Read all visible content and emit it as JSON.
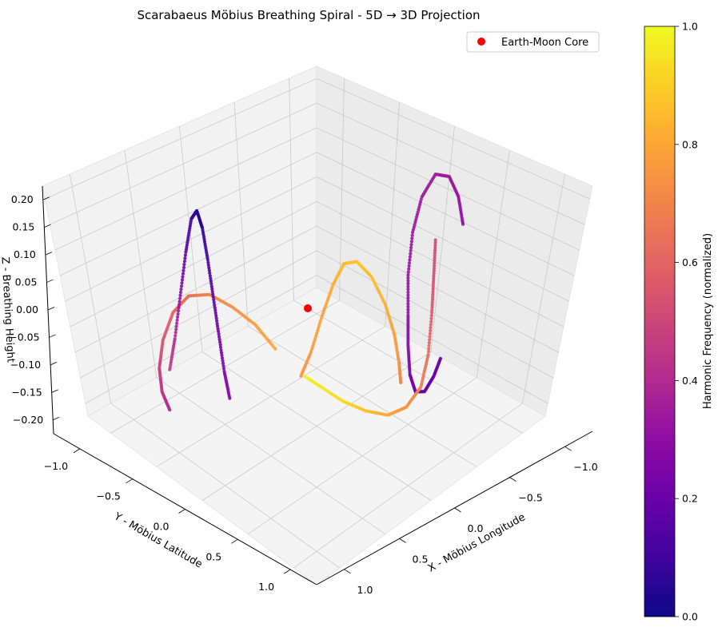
{
  "chart_data": {
    "type": "scatter",
    "title": "Scarabaeus Möbius Breathing Spiral - 5D → 3D Projection",
    "xlabel": "X - Möbius Longitude",
    "ylabel": "Y - Möbius Latitude",
    "zlabel": "Z - Breathing Height",
    "x_ticks": [
      "−1.0",
      "−0.5",
      "0.0",
      "0.5",
      "1.0"
    ],
    "y_ticks": [
      "−1.0",
      "−0.5",
      "0.0",
      "0.5",
      "1.0"
    ],
    "z_ticks": [
      "0.20",
      "0.15",
      "0.10",
      "0.05",
      "0.00",
      "−0.05",
      "−0.10",
      "−0.15",
      "−0.20"
    ],
    "xlim": [
      -1.25,
      1.25
    ],
    "ylim": [
      -1.25,
      1.25
    ],
    "zlim": [
      -0.22,
      0.22
    ],
    "grid": true,
    "colormap": "plasma",
    "colorbar": {
      "label": "Harmonic Frequency (normalized)",
      "ticks": [
        "0.0",
        "0.2",
        "0.4",
        "0.6",
        "0.8",
        "1.0"
      ],
      "range": [
        0,
        1
      ]
    },
    "legend": {
      "position": "top-right",
      "entries": [
        {
          "label": "Earth-Moon Core",
          "color": "#ff0000"
        }
      ]
    },
    "core_point": {
      "x": 0,
      "y": 0,
      "z": 0,
      "color": "#ff0000"
    },
    "series": [
      {
        "values": [
          [
            -0.4,
            -1.2,
            0.08,
            0.3
          ],
          [
            -0.4,
            -1.15,
            0.14,
            0.32
          ],
          [
            -0.4,
            -1.05,
            0.19,
            0.34
          ],
          [
            -0.4,
            -0.9,
            0.21,
            0.35
          ],
          [
            -0.4,
            -0.75,
            0.18,
            0.34
          ],
          [
            -0.4,
            -0.65,
            0.12,
            0.33
          ],
          [
            -0.4,
            -0.6,
            0.04,
            0.32
          ],
          [
            -0.4,
            -0.6,
            -0.04,
            0.3
          ],
          [
            -0.4,
            -0.6,
            -0.1,
            0.28
          ],
          [
            -0.4,
            -0.62,
            -0.16,
            0.24
          ],
          [
            -0.4,
            -0.68,
            -0.2,
            0.2
          ],
          [
            -0.4,
            -0.78,
            -0.21,
            0.18
          ],
          [
            -0.4,
            -0.88,
            -0.19,
            0.2
          ],
          [
            -0.4,
            -0.96,
            -0.16,
            0.22
          ]
        ]
      },
      {
        "values": [
          [
            -0.6,
            -0.7,
            0.12,
            0.5
          ],
          [
            -0.6,
            -0.68,
            0.05,
            0.52
          ],
          [
            -0.6,
            -0.66,
            -0.02,
            0.56
          ],
          [
            -0.6,
            -0.62,
            -0.1,
            0.62
          ],
          [
            -0.58,
            -0.56,
            -0.16,
            0.68
          ],
          [
            -0.5,
            -0.48,
            -0.2,
            0.74
          ],
          [
            -0.38,
            -0.4,
            -0.22,
            0.8
          ],
          [
            -0.22,
            -0.32,
            -0.22,
            0.86
          ],
          [
            -0.05,
            -0.24,
            -0.21,
            0.92
          ],
          [
            0.1,
            -0.16,
            -0.19,
            0.96
          ],
          [
            0.22,
            -0.08,
            -0.17,
            0.98
          ]
        ]
      },
      {
        "values": [
          [
            -0.82,
            -0.1,
            -0.08,
            0.7
          ],
          [
            -0.9,
            0.0,
            -0.02,
            0.74
          ],
          [
            -0.95,
            0.1,
            0.05,
            0.78
          ],
          [
            -0.95,
            0.2,
            0.12,
            0.82
          ],
          [
            -0.9,
            0.3,
            0.18,
            0.86
          ],
          [
            -0.82,
            0.38,
            0.21,
            0.88
          ],
          [
            -0.72,
            0.42,
            0.2,
            0.86
          ],
          [
            -0.62,
            0.44,
            0.15,
            0.82
          ],
          [
            -0.52,
            0.46,
            0.08,
            0.78
          ],
          [
            -0.42,
            0.48,
            0.0,
            0.76
          ],
          [
            -0.32,
            0.5,
            -0.06,
            0.74
          ]
        ]
      },
      {
        "values": [
          [
            -0.1,
            0.55,
            -0.02,
            0.8
          ],
          [
            0.05,
            0.62,
            0.02,
            0.78
          ],
          [
            0.2,
            0.72,
            0.05,
            0.74
          ],
          [
            0.35,
            0.82,
            0.07,
            0.7
          ],
          [
            0.5,
            0.9,
            0.06,
            0.64
          ],
          [
            0.62,
            0.95,
            0.02,
            0.6
          ],
          [
            0.7,
            0.98,
            -0.04,
            0.54
          ],
          [
            0.74,
            0.98,
            -0.1,
            0.48
          ],
          [
            0.74,
            0.95,
            -0.15,
            0.44
          ],
          [
            0.7,
            0.9,
            -0.19,
            0.4
          ]
        ]
      },
      {
        "values": [
          [
            0.55,
            0.4,
            -0.2,
            0.28
          ],
          [
            0.55,
            0.46,
            -0.14,
            0.26
          ],
          [
            0.55,
            0.52,
            -0.06,
            0.22
          ],
          [
            0.55,
            0.58,
            0.02,
            0.18
          ],
          [
            0.55,
            0.64,
            0.1,
            0.12
          ],
          [
            0.55,
            0.7,
            0.17,
            0.06
          ],
          [
            0.55,
            0.76,
            0.21,
            0.04
          ],
          [
            0.55,
            0.82,
            0.2,
            0.1
          ],
          [
            0.55,
            0.88,
            0.14,
            0.18
          ],
          [
            0.55,
            0.94,
            0.06,
            0.3
          ],
          [
            0.55,
            1.0,
            -0.02,
            0.4
          ],
          [
            0.55,
            1.06,
            -0.08,
            0.46
          ]
        ]
      }
    ]
  }
}
